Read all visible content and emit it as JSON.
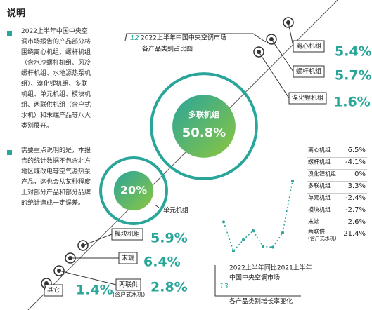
{
  "notes": {
    "title": "说明",
    "items": [
      "2022上半年中国中央空调市场报告的产品部分将围绕离心机组、螺杆机组（含水冷螺杆机组、风冷螺杆机组、水地源热泵机组）、溴化锂机组、多联机组、单元机组、模块机组、两联供机组（含户式水机）和末端产品等八大类别展开。",
      "需要重点说明的是，本报告的统计数据不包含北方地区煤改电等空气源热泵产品，这也会从某种程度上对部分产品和部分品牌的统计造成一定误差。"
    ]
  },
  "chart_data": [
    {
      "type": "bubble",
      "number": "12",
      "title": "2022上半年中国中央空调市场",
      "subtitle": "各产品类别占比图",
      "categories": [
        "离心机组",
        "螺杆机组",
        "溴化锂机组",
        "多联机组",
        "单元机组",
        "模块机组",
        "末端",
        "两联供",
        "其它"
      ],
      "sublabels": {
        "两联供": "(含户式水机)"
      },
      "values": [
        5.4,
        5.7,
        1.6,
        50.8,
        20,
        5.9,
        6.4,
        2.8,
        1.4
      ],
      "value_labels": [
        "5.4%",
        "5.7%",
        "1.6%",
        "50.8%",
        "20%",
        "5.9%",
        "6.4%",
        "2.8%",
        "1.4%"
      ],
      "color": "#2aa59a"
    },
    {
      "type": "line",
      "number": "13",
      "title": "2022上半年同比2021上半年",
      "subtitle": "中国中央空调市场",
      "caption": "各产品类别增长率变化",
      "categories": [
        "离心机组",
        "螺杆机组",
        "溴化锂机组",
        "多联机组",
        "单元机组",
        "模块机组",
        "末端",
        "两联供"
      ],
      "sublabels": {
        "两联供": "(含户式水机)"
      },
      "values": [
        6.5,
        -4.1,
        0,
        3.3,
        -2.4,
        -2.7,
        2.6,
        21.4
      ],
      "value_labels": [
        "6.5%",
        "-4.1%",
        "0%",
        "3.3%",
        "-2.4%",
        "-2.7%",
        "2.6%",
        "21.4%"
      ],
      "color": "#2aa59a"
    }
  ]
}
